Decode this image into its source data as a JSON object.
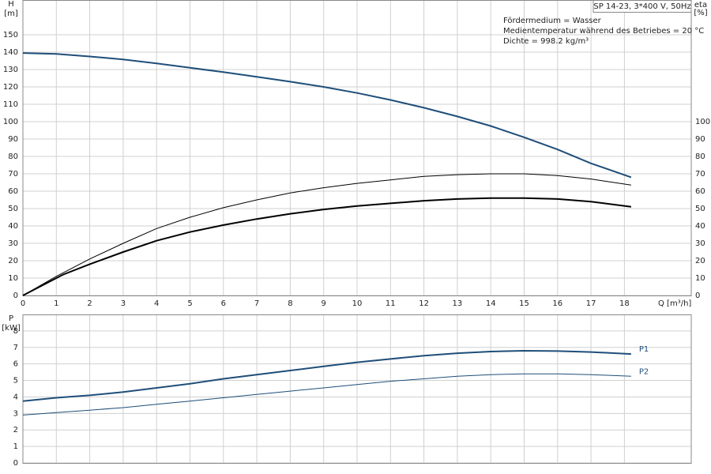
{
  "chart_data": [
    {
      "type": "line",
      "ylabel": "H",
      "ylabel_unit": "[m]",
      "y2label": "eta",
      "y2label_unit": "[%]",
      "xlabel": "Q [m³/h]",
      "info": "SP 14-23, 3*400 V, 50Hz",
      "annotations": [
        "Fördermedium = Wasser",
        "Medientemperatur während des Betriebes = 20 °C",
        "Dichte = 998.2 kg/m³"
      ],
      "xlim": [
        0,
        20
      ],
      "xticks": [
        0,
        1,
        2,
        3,
        4,
        5,
        6,
        7,
        8,
        9,
        10,
        11,
        12,
        13,
        14,
        15,
        16,
        17,
        18
      ],
      "ylim": [
        0,
        170
      ],
      "yticks": [
        0,
        10,
        20,
        30,
        40,
        50,
        60,
        70,
        80,
        90,
        100,
        110,
        120,
        130,
        140,
        150
      ],
      "y2lim": [
        0,
        170
      ],
      "y2ticks": [
        0,
        10,
        20,
        30,
        40,
        50,
        60,
        70,
        80,
        90,
        100
      ],
      "grid": true,
      "series": [
        {
          "color": "#1f4e79",
          "width": 2,
          "axis": "y",
          "x": [
            0,
            1,
            2,
            3,
            4,
            5,
            6,
            7,
            8,
            9,
            10,
            11,
            12,
            13,
            14,
            15,
            16,
            17,
            18.2
          ],
          "values": [
            139.5,
            139,
            137.5,
            135.8,
            133.5,
            131,
            128.5,
            125.8,
            123,
            120,
            116.5,
            112.5,
            108,
            103,
            97.5,
            91,
            84,
            76,
            68
          ]
        },
        {
          "color": "#000000",
          "width": 1,
          "axis": "y2",
          "x": [
            0,
            1,
            2,
            3,
            4,
            5,
            6,
            7,
            8,
            9,
            10,
            11,
            12,
            13,
            14,
            15,
            16,
            17,
            18.2
          ],
          "values": [
            0,
            11,
            21,
            30,
            38.5,
            45,
            50.5,
            55,
            59,
            62,
            64.5,
            66.5,
            68.5,
            69.5,
            70,
            70,
            69,
            67,
            63.5
          ]
        },
        {
          "color": "#000000",
          "width": 2,
          "axis": "y2",
          "x": [
            0,
            1.2,
            2,
            3,
            4,
            5,
            6,
            7,
            8,
            9,
            10,
            11,
            12,
            13,
            14,
            15,
            16,
            17,
            18.2
          ],
          "values": [
            0,
            12,
            18,
            25,
            31.5,
            36.5,
            40.5,
            44,
            47,
            49.5,
            51.5,
            53,
            54.5,
            55.5,
            56,
            56,
            55.5,
            54,
            51
          ]
        }
      ]
    },
    {
      "type": "line",
      "ylabel": "P",
      "ylabel_unit": "[kW]",
      "xlim": [
        0,
        20
      ],
      "ylim": [
        0,
        9
      ],
      "yticks": [
        0,
        1,
        2,
        3,
        4,
        5,
        6,
        7,
        8
      ],
      "grid": true,
      "series": [
        {
          "name": "P1",
          "color": "#1f4e79",
          "width": 2,
          "axis": "y",
          "x": [
            0,
            1,
            2,
            3,
            4,
            5,
            6,
            7,
            8,
            9,
            10,
            11,
            12,
            13,
            14,
            15,
            16,
            17,
            18.2
          ],
          "values": [
            3.75,
            3.95,
            4.1,
            4.3,
            4.55,
            4.8,
            5.1,
            5.35,
            5.6,
            5.85,
            6.1,
            6.3,
            6.5,
            6.65,
            6.75,
            6.8,
            6.78,
            6.72,
            6.6
          ]
        },
        {
          "name": "P2",
          "color": "#1f4e79",
          "width": 1,
          "axis": "y",
          "x": [
            0,
            1,
            2,
            3,
            4,
            5,
            6,
            7,
            8,
            9,
            10,
            11,
            12,
            13,
            14,
            15,
            16,
            17,
            18.2
          ],
          "values": [
            2.9,
            3.05,
            3.2,
            3.35,
            3.55,
            3.75,
            3.95,
            4.15,
            4.35,
            4.55,
            4.75,
            4.95,
            5.1,
            5.25,
            5.35,
            5.4,
            5.4,
            5.35,
            5.25
          ]
        }
      ]
    }
  ]
}
